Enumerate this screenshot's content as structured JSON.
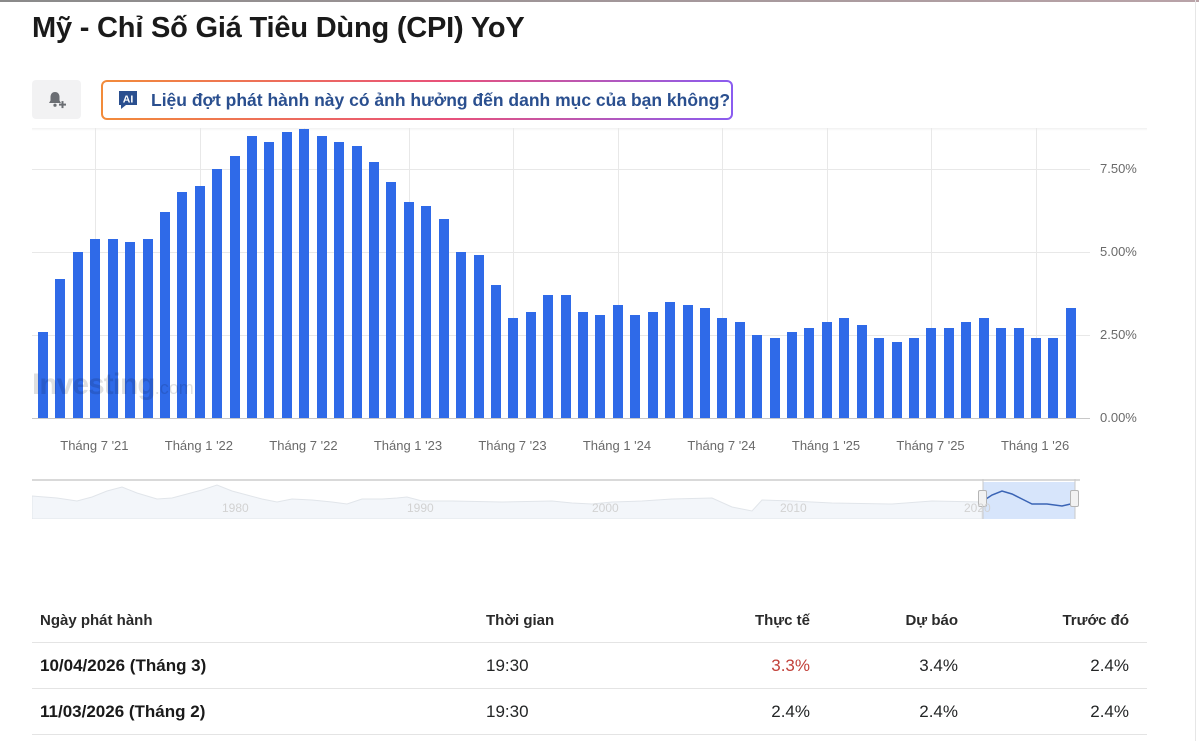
{
  "page": {
    "title": "Mỹ - Chỉ Số Giá Tiêu Dùng (CPI) YoY",
    "alert_button_icon": "bell-plus-icon",
    "ai_prompt": {
      "badge": "AI",
      "text": "Liệu đợt phát hành này có ảnh hưởng đến danh mục của bạn không?"
    },
    "watermark": "Investing",
    "watermark_suffix": ".com"
  },
  "colors": {
    "bar": "#2f6ae8",
    "actual_negative": "#c2413a",
    "ai_text": "#2a4f8f"
  },
  "chart_data": {
    "type": "bar",
    "title": "Mỹ - Chỉ Số Giá Tiêu Dùng (CPI) YoY",
    "xlabel": "",
    "ylabel": "",
    "ylim": [
      0,
      8.7
    ],
    "y_ticks": [
      "0.00%",
      "2.50%",
      "5.00%",
      "7.50%"
    ],
    "y_tick_values": [
      0,
      2.5,
      5.0,
      7.5
    ],
    "x_tick_labels": [
      "Tháng 7 '21",
      "Tháng 1 '22",
      "Tháng 7 '22",
      "Tháng 1 '23",
      "Tháng 7 '23",
      "Tháng 1 '24",
      "Tháng 7 '24",
      "Tháng 1 '25",
      "Tháng 7 '25",
      "Tháng 1 '26"
    ],
    "x_tick_bar_index": [
      3,
      9,
      15,
      21,
      27,
      33,
      39,
      45,
      51,
      57
    ],
    "grid": true,
    "legend": "none",
    "categories": [
      "Apr '21",
      "May '21",
      "Jun '21",
      "Jul '21",
      "Aug '21",
      "Sep '21",
      "Oct '21",
      "Nov '21",
      "Dec '21",
      "Jan '22",
      "Feb '22",
      "Mar '22",
      "Apr '22",
      "May '22",
      "Jun '22",
      "Jul '22",
      "Aug '22",
      "Sep '22",
      "Oct '22",
      "Nov '22",
      "Dec '22",
      "Jan '23",
      "Feb '23",
      "Mar '23",
      "Apr '23",
      "May '23",
      "Jun '23",
      "Jul '23",
      "Aug '23",
      "Sep '23",
      "Oct '23",
      "Nov '23",
      "Dec '23",
      "Jan '24",
      "Feb '24",
      "Mar '24",
      "Apr '24",
      "May '24",
      "Jun '24",
      "Jul '24",
      "Aug '24",
      "Sep '24",
      "Oct '24",
      "Nov '24",
      "Dec '24",
      "Jan '25",
      "Feb '25",
      "Mar '25",
      "Apr '25",
      "May '25",
      "Jun '25",
      "Jul '25",
      "Aug '25",
      "Sep '25",
      "Oct '25",
      "Nov '25",
      "Dec '25",
      "Jan '26",
      "Feb '26",
      "Mar '26"
    ],
    "values": [
      2.6,
      4.2,
      5.0,
      5.4,
      5.4,
      5.3,
      5.4,
      6.2,
      6.8,
      7.0,
      7.5,
      7.9,
      8.5,
      8.3,
      8.6,
      8.7,
      8.5,
      8.3,
      8.2,
      7.7,
      7.1,
      6.5,
      6.4,
      6.0,
      5.0,
      4.9,
      4.0,
      3.0,
      3.2,
      3.7,
      3.7,
      3.2,
      3.1,
      3.4,
      3.1,
      3.2,
      3.5,
      3.4,
      3.3,
      3.0,
      2.9,
      2.5,
      2.4,
      2.6,
      2.7,
      2.9,
      3.0,
      2.8,
      2.4,
      2.3,
      2.4,
      2.7,
      2.7,
      2.9,
      3.0,
      2.7,
      2.7,
      2.4,
      2.4,
      3.3
    ],
    "navigator": {
      "year_labels": [
        "1980",
        "1990",
        "2000",
        "2010",
        "2020"
      ]
    }
  },
  "table": {
    "headers": [
      "Ngày phát hành",
      "Thời gian",
      "Thực tế",
      "Dự báo",
      "Trước đó"
    ],
    "rows": [
      {
        "date": "10/04/2026 (Tháng 3)",
        "time": "19:30",
        "actual": "3.3%",
        "forecast": "3.4%",
        "previous": "2.4%"
      },
      {
        "date": "11/03/2026 (Tháng 2)",
        "time": "19:30",
        "actual": "2.4%",
        "forecast": "2.4%",
        "previous": "2.4%"
      }
    ]
  }
}
